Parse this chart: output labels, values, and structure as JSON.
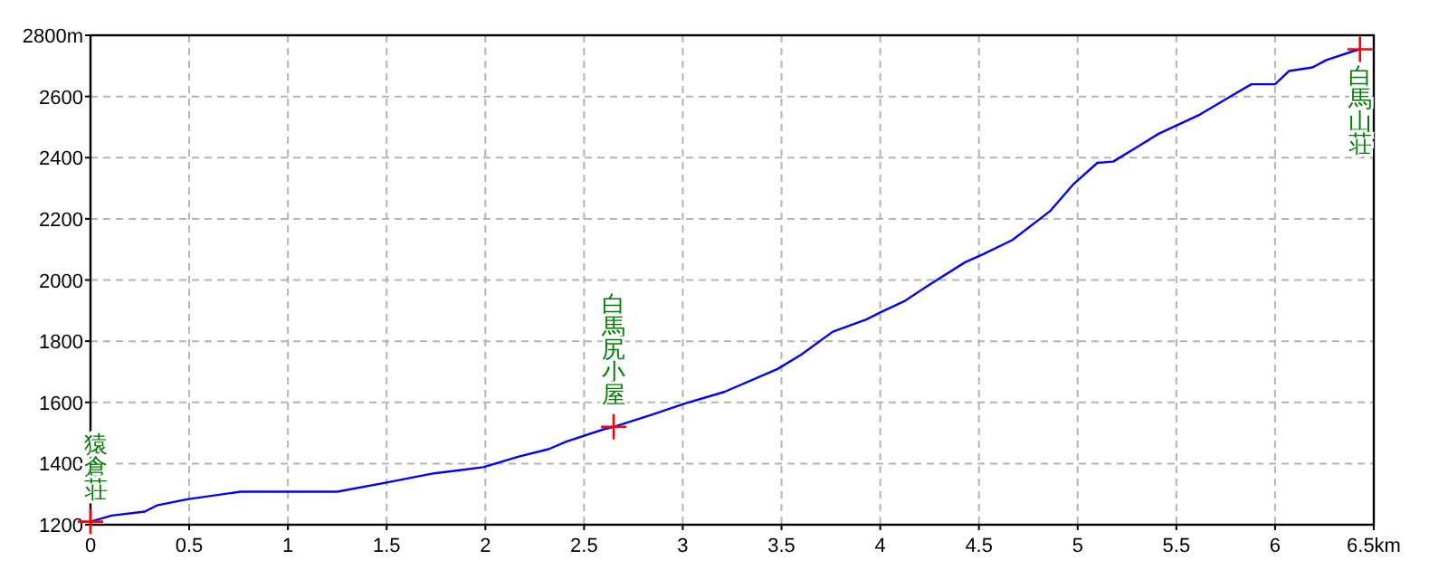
{
  "chart_data": {
    "type": "line",
    "xlim": [
      0,
      6.5
    ],
    "ylim": [
      1200,
      2800
    ],
    "xticks": [
      0,
      0.5,
      1,
      1.5,
      2,
      2.5,
      3,
      3.5,
      4,
      4.5,
      5,
      5.5,
      6,
      {
        "value": 6.5,
        "label": "6.5km"
      }
    ],
    "yticks": [
      1200,
      1400,
      1600,
      1800,
      2000,
      2200,
      2400,
      2600,
      {
        "value": 2800,
        "label": "2800m"
      }
    ],
    "grid": true,
    "series": [
      {
        "type": "line",
        "color": "#0000ff",
        "marker": "none",
        "x": [
          0,
          0.107,
          0.275,
          0.336,
          0.49,
          0.76,
          1.25,
          1.5,
          1.74,
          1.99,
          2.17,
          2.32,
          2.41,
          2.6,
          2.65,
          2.84,
          3.02,
          3.21,
          3.48,
          3.6,
          3.76,
          3.93,
          4.0,
          4.12,
          4.26,
          4.43,
          4.52,
          4.67,
          4.86,
          4.98,
          5.1,
          5.18,
          5.32,
          5.41,
          5.62,
          5.8,
          5.88,
          6.0,
          6.07,
          6.19,
          6.26,
          6.4,
          6.43
        ],
        "values": [
          1210,
          1230,
          1243,
          1263,
          1283,
          1308,
          1308,
          1338,
          1368,
          1388,
          1423,
          1447,
          1472,
          1512,
          1520,
          1559,
          1598,
          1634,
          1709,
          1756,
          1831,
          1871,
          1894,
          1930,
          1989,
          2058,
          2084,
          2131,
          2225,
          2314,
          2383,
          2387,
          2442,
          2478,
          2541,
          2610,
          2640,
          2640,
          2683,
          2695,
          2719,
          2749,
          2754
        ]
      },
      {
        "type": "scatter",
        "color": "#ff0000",
        "marker": "cross",
        "x": [
          0,
          2.65,
          6.43
        ],
        "values": [
          1210,
          1520,
          2754
        ]
      }
    ],
    "annotations": [
      {
        "text": "猿倉荘",
        "x": 0,
        "y": 1210
      },
      {
        "text": "白馬尻小屋",
        "x": 2.65,
        "y": 1520
      },
      {
        "text": "白馬山荘",
        "x": 6.43,
        "y": 2754
      }
    ]
  }
}
